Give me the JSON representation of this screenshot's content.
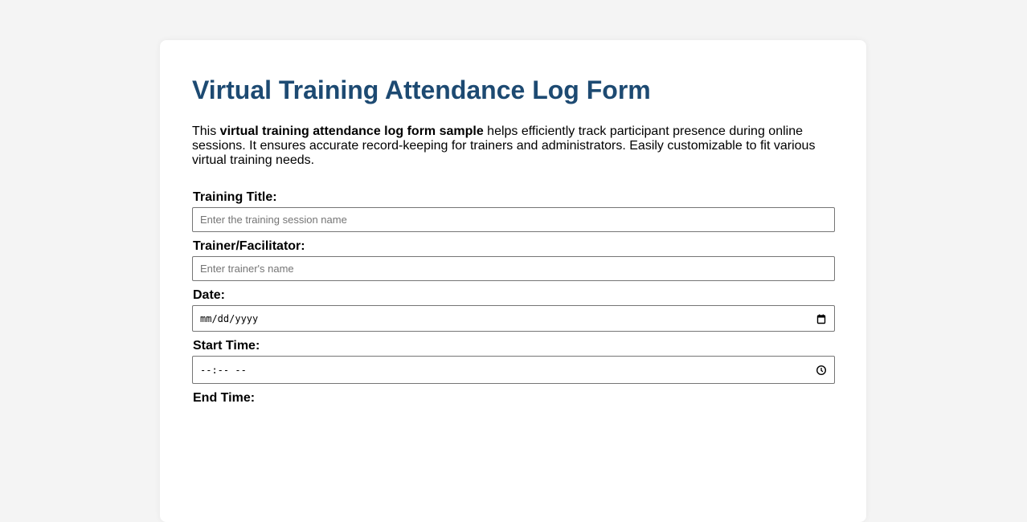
{
  "title": "Virtual Training Attendance Log Form",
  "intro": {
    "prefix": "This ",
    "bold": "virtual training attendance log form sample",
    "suffix": " helps efficiently track participant presence during online sessions. It ensures accurate record-keeping for trainers and administrators. Easily customizable to fit various virtual training needs."
  },
  "fields": {
    "training_title": {
      "label": "Training Title:",
      "placeholder": "Enter the training session name"
    },
    "trainer": {
      "label": "Trainer/Facilitator:",
      "placeholder": "Enter trainer's name"
    },
    "date": {
      "label": "Date:",
      "placeholder": "mm/dd/yyyy",
      "icon": "calendar-icon"
    },
    "start_time": {
      "label": "Start Time:",
      "placeholder": "--:-- --",
      "icon": "clock-icon"
    },
    "end_time": {
      "label": "End Time:"
    }
  },
  "colors": {
    "title": "#1d4a72",
    "background": "#f4f4f4",
    "card": "#ffffff"
  }
}
